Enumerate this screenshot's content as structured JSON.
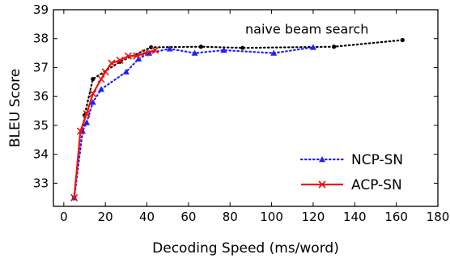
{
  "chart_data": {
    "type": "line",
    "title": "",
    "xlabel": "Decoding Speed (ms/word)",
    "ylabel": "BLEU Score",
    "xlim": [
      -5,
      180
    ],
    "ylim": [
      32.2,
      39
    ],
    "xticks": [
      0,
      20,
      40,
      60,
      80,
      100,
      120,
      140,
      160,
      180
    ],
    "yticks": [
      33,
      34,
      35,
      36,
      37,
      38,
      39
    ],
    "grid": false,
    "legend": {
      "position": "bottom-right"
    },
    "annotations": [
      {
        "text": "naive beam search",
        "x": 117,
        "y": 38.18
      }
    ],
    "series": [
      {
        "name": "",
        "color": "#000000",
        "style": "dotted",
        "marker": "dot",
        "x": [
          5,
          10,
          14,
          27,
          42,
          66,
          86,
          130,
          163
        ],
        "y": [
          32.5,
          35.35,
          36.6,
          37.2,
          37.7,
          37.72,
          37.68,
          37.72,
          37.95
        ]
      },
      {
        "name": "NCP-SN",
        "color": "#1f1fff",
        "style": "dotted",
        "marker": "triangle",
        "x": [
          5,
          9,
          11,
          14,
          18,
          30,
          36,
          41,
          51,
          63,
          77,
          101,
          120
        ],
        "y": [
          32.5,
          34.8,
          35.1,
          35.8,
          36.25,
          36.85,
          37.3,
          37.5,
          37.65,
          37.5,
          37.6,
          37.5,
          37.7
        ]
      },
      {
        "name": "ACP-SN",
        "color": "#ee1111",
        "style": "solid",
        "marker": "x",
        "x": [
          5,
          8,
          11,
          14,
          18,
          20,
          23,
          27,
          31,
          35,
          39,
          44
        ],
        "y": [
          32.5,
          34.8,
          35.4,
          36.1,
          36.6,
          36.85,
          37.15,
          37.25,
          37.4,
          37.4,
          37.5,
          37.6
        ]
      }
    ]
  }
}
